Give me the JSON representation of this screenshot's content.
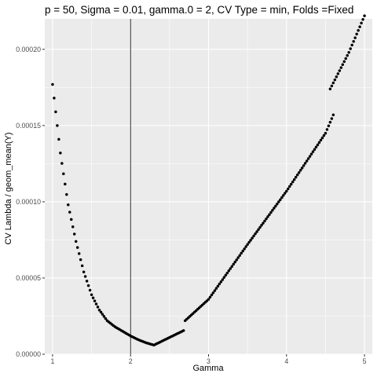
{
  "chart_data": {
    "type": "scatter",
    "title": "p = 50, Sigma = 0.01, gamma.0 = 2, CV Type = min, Folds =Fixed",
    "xlabel": "Gamma",
    "ylabel": "CV Lambda / geom_mean(Y)",
    "xlim": [
      0.9,
      5.1
    ],
    "ylim": [
      0,
      0.00022
    ],
    "x_ticks": [
      {
        "value": 1,
        "label": "1"
      },
      {
        "value": 2,
        "label": "2"
      },
      {
        "value": 3,
        "label": "3"
      },
      {
        "value": 4,
        "label": "4"
      },
      {
        "value": 5,
        "label": "5"
      }
    ],
    "y_ticks": [
      {
        "value": 0,
        "label": "0.00000"
      },
      {
        "value": 5e-05,
        "label": "0.00005"
      },
      {
        "value": 0.0001,
        "label": "0.00010"
      },
      {
        "value": 0.00015,
        "label": "0.00015"
      },
      {
        "value": 0.0002,
        "label": "0.00020"
      }
    ],
    "grid": true,
    "background": "#ebebeb",
    "grid_color": "#ffffff",
    "point_color": "#000000",
    "vline": {
      "x": 2,
      "color": "#000000"
    },
    "series": [
      {
        "segments": [
          {
            "x_start": 1.0,
            "x_end": 2.3,
            "step": 0.02,
            "anchors": [
              [
                1.0,
                0.000177
              ],
              [
                1.1,
                0.000132
              ],
              [
                1.2,
                9.8e-05
              ],
              [
                1.3,
                7.4e-05
              ],
              [
                1.4,
                5.4e-05
              ],
              [
                1.5,
                3.9e-05
              ],
              [
                1.6,
                2.9e-05
              ],
              [
                1.7,
                2.2e-05
              ],
              [
                1.8,
                1.8e-05
              ],
              [
                1.9,
                1.5e-05
              ],
              [
                2.0,
                1.2e-05
              ],
              [
                2.1,
                9.5e-06
              ],
              [
                2.2,
                7.5e-06
              ],
              [
                2.3,
                6e-06
              ]
            ]
          },
          {
            "x_start": 2.32,
            "x_end": 2.68,
            "step": 0.02,
            "anchors": [
              [
                2.3,
                6e-06
              ],
              [
                2.5,
                1.1e-05
              ],
              [
                2.7,
                1.6e-05
              ]
            ]
          },
          {
            "x_start": 2.7,
            "x_end": 4.6,
            "step": 0.02,
            "anchors": [
              [
                2.7,
                2.2e-05
              ],
              [
                3.0,
                3.6e-05
              ],
              [
                3.5,
                7.2e-05
              ],
              [
                4.0,
                0.000107
              ],
              [
                4.5,
                0.000145
              ],
              [
                4.6,
                0.000157
              ]
            ]
          },
          {
            "x_start": 4.56,
            "x_end": 5.0,
            "step": 0.02,
            "anchors": [
              [
                4.56,
                0.000174
              ],
              [
                4.8,
                0.000198
              ],
              [
                5.0,
                0.000222
              ]
            ]
          }
        ]
      }
    ]
  }
}
